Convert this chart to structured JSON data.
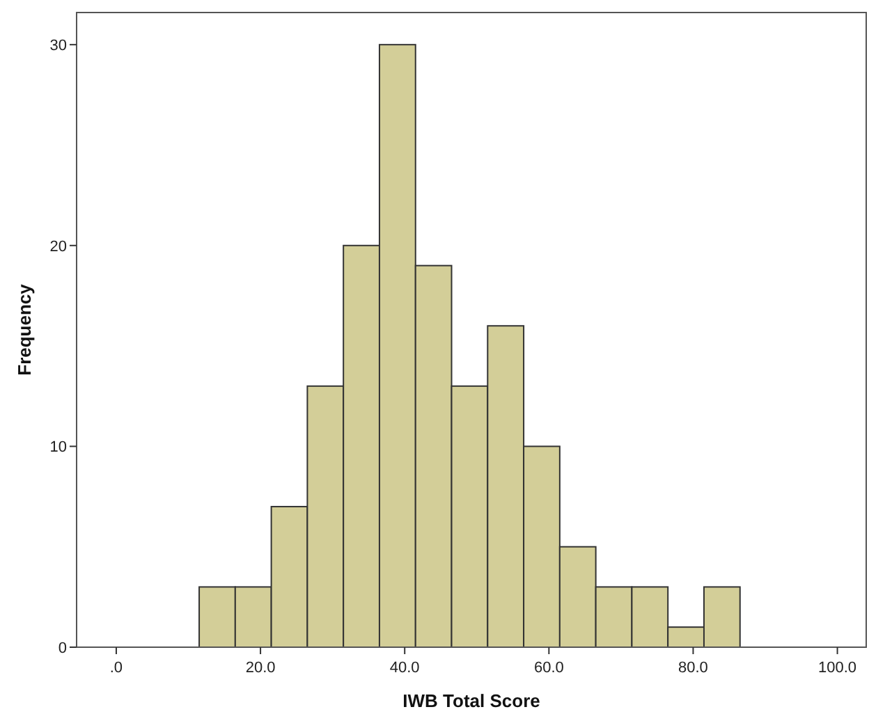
{
  "chart_data": {
    "type": "histogram",
    "xlabel": "IWB Total Score",
    "ylabel": "Frequency",
    "bins": [
      11.5,
      16.5,
      21.5,
      26.5,
      31.5,
      36.5,
      41.5,
      46.5,
      51.5,
      56.5,
      61.5,
      66.5,
      71.5,
      76.5,
      81.5,
      86.5
    ],
    "values": [
      3,
      3,
      7,
      13,
      20,
      30,
      19,
      13,
      16,
      10,
      5,
      3,
      3,
      1,
      3
    ],
    "color": "#d3ce98",
    "xlim": [
      -5.5,
      104
    ],
    "xticks": [
      {
        "value": 0,
        "label": ".0"
      },
      {
        "value": 20,
        "label": "20.0"
      },
      {
        "value": 40,
        "label": "40.0"
      },
      {
        "value": 60,
        "label": "60.0"
      },
      {
        "value": 80,
        "label": "80.0"
      },
      {
        "value": 100,
        "label": "100.0"
      }
    ],
    "ylim": [
      0,
      31.6
    ],
    "yticks": [
      0,
      10,
      20,
      30
    ],
    "grid": false
  }
}
